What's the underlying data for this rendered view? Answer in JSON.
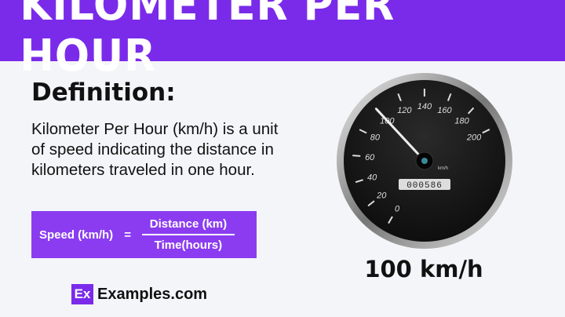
{
  "header": {
    "title": "KILOMETER PER HOUR"
  },
  "definition": {
    "title": "Definition:",
    "text": "Kilometer Per Hour (km/h) is a unit of speed indicating the distance in kilometers traveled in one hour."
  },
  "formula": {
    "lhs": "Speed (km/h)",
    "equals": "=",
    "numerator": "Distance (km)",
    "denominator": "Time(hours)"
  },
  "logo": {
    "mark": "Ex",
    "site": "Examples.com"
  },
  "speedometer": {
    "ticks": [
      "0",
      "20",
      "40",
      "60",
      "80",
      "100",
      "120",
      "140",
      "160",
      "180",
      "200"
    ],
    "unit": "km/h",
    "odometer": "000586",
    "needle_value": 100,
    "readout": "100 km/h"
  },
  "colors": {
    "accent": "#7a2bea",
    "formula_bg": "#8b3cf0",
    "dial": "#141414"
  }
}
